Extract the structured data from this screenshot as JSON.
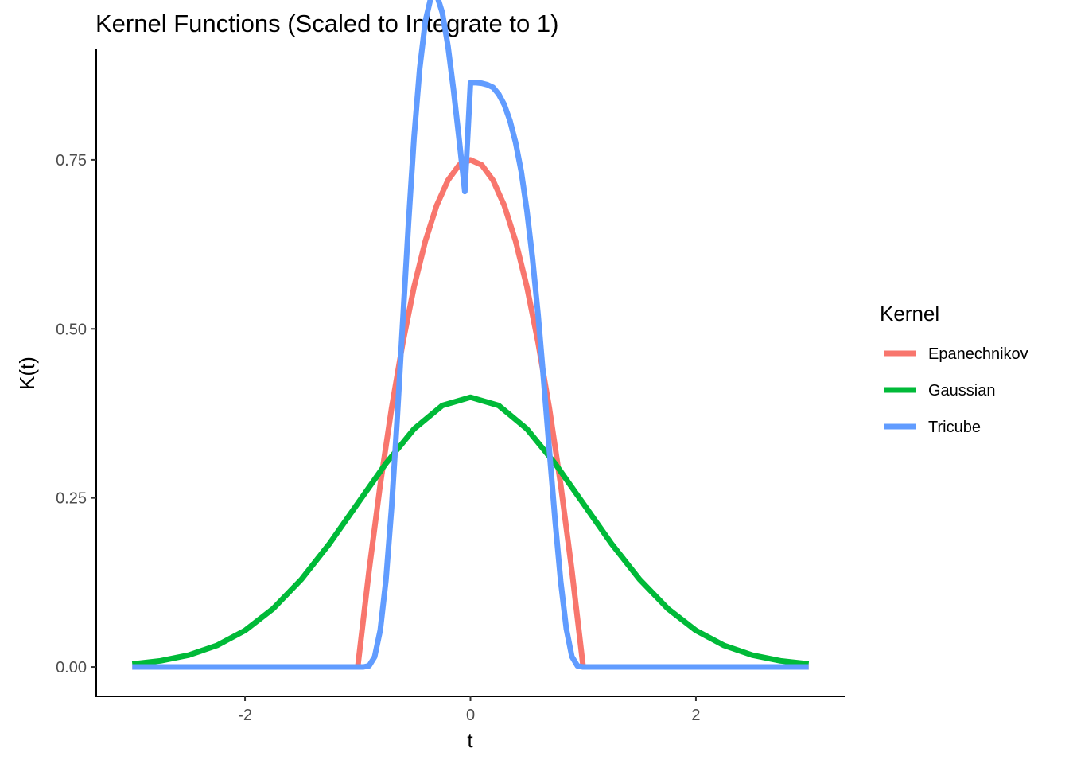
{
  "chart_data": {
    "type": "line",
    "title": "Kernel Functions (Scaled to Integrate to 1)",
    "xlabel": "t",
    "ylabel": "K(t)",
    "xlim": [
      -3.32,
      3.32
    ],
    "ylim": [
      -0.0435,
      0.9135
    ],
    "x_ticks": [
      -2,
      0,
      2
    ],
    "x_tick_labels": [
      "-2",
      "0",
      "2"
    ],
    "y_ticks": [
      0,
      0.25,
      0.5,
      0.75
    ],
    "y_tick_labels": [
      "0.00",
      "0.25",
      "0.50",
      "0.75"
    ],
    "grid": false,
    "legend": {
      "title": "Kernel",
      "position": "right"
    },
    "series": [
      {
        "name": "Epanechnikov",
        "color": "#F8766D",
        "x": [
          -3,
          -1,
          -0.9,
          -0.8,
          -0.7,
          -0.6,
          -0.5,
          -0.4,
          -0.3,
          -0.2,
          -0.1,
          0,
          0.1,
          0.2,
          0.3,
          0.4,
          0.5,
          0.6,
          0.7,
          0.8,
          0.9,
          1,
          3
        ],
        "y": [
          0,
          0,
          0.1425,
          0.27,
          0.3825,
          0.48,
          0.5625,
          0.63,
          0.6825,
          0.72,
          0.7425,
          0.75,
          0.7425,
          0.72,
          0.6825,
          0.63,
          0.5625,
          0.48,
          0.3825,
          0.27,
          0.1425,
          0,
          0
        ]
      },
      {
        "name": "Gaussian",
        "color": "#00BA38",
        "x": [
          -3,
          -2.75,
          -2.5,
          -2.25,
          -2,
          -1.75,
          -1.5,
          -1.25,
          -1,
          -0.75,
          -0.5,
          -0.25,
          0,
          0.25,
          0.5,
          0.75,
          1,
          1.25,
          1.5,
          1.75,
          2,
          2.25,
          2.5,
          2.75,
          3
        ],
        "y": [
          0.0044,
          0.0091,
          0.0175,
          0.0317,
          0.054,
          0.0863,
          0.1295,
          0.1826,
          0.242,
          0.3011,
          0.3521,
          0.3867,
          0.3989,
          0.3867,
          0.3521,
          0.3011,
          0.242,
          0.1826,
          0.1295,
          0.0863,
          0.054,
          0.0317,
          0.0175,
          0.0091,
          0.0044
        ]
      },
      {
        "name": "Tricube",
        "color": "#619CFF",
        "x": [
          -3,
          -1,
          -0.95,
          -0.9,
          -0.85,
          -0.8,
          -0.75,
          -0.7,
          -0.65,
          -0.6,
          -0.55,
          -0.5,
          -0.45,
          -0.4,
          -0.35,
          -0.3,
          -0.25,
          -0.2,
          -0.15,
          -0.1,
          -0.05,
          0,
          0.05,
          0.1,
          0.15,
          0.2,
          0.25,
          0.3,
          0.35,
          0.4,
          0.45,
          0.5,
          0.55,
          0.6,
          0.65,
          0.7,
          0.75,
          0.8,
          0.85,
          0.9,
          0.95,
          1,
          3
        ],
        "y": [
          0,
          0,
          3e-06,
          0.0017,
          0.015,
          0.0546,
          0.1282,
          0.2351,
          0.3678,
          0.514,
          0.6567,
          0.7838,
          0.8855,
          0.9553,
          0.991,
          0.9946,
          0.9678,
          0.9185,
          0.8536,
          0.7798,
          0.7033,
          0.8642,
          0.8642,
          0.8634,
          0.8611,
          0.8572,
          0.8474,
          0.8317,
          0.8082,
          0.7759,
          0.7331,
          0.6752,
          0.6053,
          0.521,
          0.4233,
          0.32,
          0.2181,
          0.1271,
          0.0565,
          0.0153,
          0.0015,
          0,
          0
        ]
      }
    ]
  }
}
